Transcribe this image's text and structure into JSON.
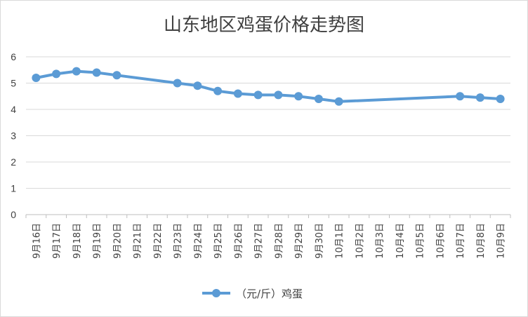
{
  "chart_data": {
    "type": "line",
    "title": "山东地区鸡蛋价格走势图",
    "xlabel": "",
    "ylabel": "",
    "ylim": [
      0,
      6
    ],
    "yticks": [
      0,
      1,
      2,
      3,
      4,
      5,
      6
    ],
    "grid": true,
    "legend_position": "bottom",
    "line_color": "#5b9bd5",
    "categories": [
      "9月16日",
      "9月17日",
      "9月18日",
      "9月19日",
      "9月20日",
      "9月21日",
      "9月22日",
      "9月23日",
      "9月24日",
      "9月25日",
      "9月26日",
      "9月27日",
      "9月28日",
      "9月29日",
      "9月30日",
      "10月1日",
      "10月2日",
      "10月3日",
      "10月4日",
      "10月5日",
      "10月6日",
      "10月7日",
      "10月8日",
      "10月9日"
    ],
    "series": [
      {
        "name": "（元/斤）鸡蛋",
        "values": [
          5.2,
          5.35,
          5.45,
          5.4,
          5.3,
          null,
          null,
          5.0,
          4.9,
          4.7,
          4.6,
          4.55,
          4.55,
          4.5,
          4.4,
          4.3,
          null,
          null,
          null,
          null,
          null,
          4.5,
          4.45,
          4.4
        ]
      }
    ]
  }
}
